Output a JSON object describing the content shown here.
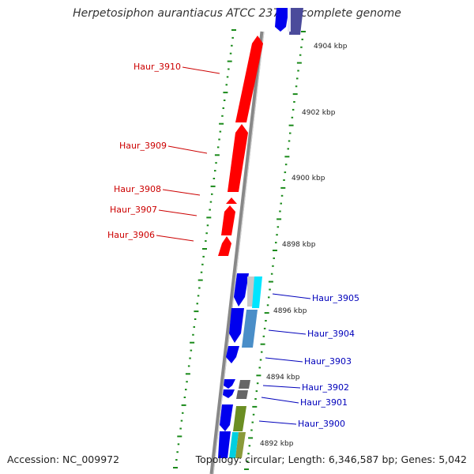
{
  "title": "Herpetosiphon aurantiacus ATCC 23779, complete genome",
  "accession": "Accession: NC_009972",
  "summary": "Topology: circular; Length: 6,346,587 bp; Genes: 5,042",
  "colors": {
    "backbone": "#888888",
    "tick": "#1a8a1a",
    "left_genes": "#ff0000",
    "left_labels": "#cc0000",
    "right_labels": "#0000bb",
    "strand_blue": "#0000ee"
  },
  "scale": {
    "ticks": [
      {
        "label": "4904 kbp",
        "kbp": 4904
      },
      {
        "label": "4902 kbp",
        "kbp": 4902
      },
      {
        "label": "4900 kbp",
        "kbp": 4900
      },
      {
        "label": "4898 kbp",
        "kbp": 4898
      },
      {
        "label": "4896 kbp",
        "kbp": 4896
      },
      {
        "label": "4894 kbp",
        "kbp": 4894
      },
      {
        "label": "4892 kbp",
        "kbp": 4892
      }
    ]
  },
  "left_genes": [
    {
      "label": "Haur_3910",
      "start_kbp": 4902.1,
      "end_kbp": 4904.7,
      "strand": "+"
    },
    {
      "label": "Haur_3909",
      "start_kbp": 4899.9,
      "end_kbp": 4902.0,
      "strand": "+"
    },
    {
      "label": "Haur_3908",
      "start_kbp": 4899.5,
      "end_kbp": 4899.7,
      "strand": "+"
    },
    {
      "label": "Haur_3907",
      "start_kbp": 4898.6,
      "end_kbp": 4899.4,
      "strand": "+"
    },
    {
      "label": "Haur_3906",
      "start_kbp": 4897.9,
      "end_kbp": 4898.5,
      "strand": "+"
    }
  ],
  "right_genes": [
    {
      "label": "Haur_3905",
      "start_kbp": 4896.2,
      "end_kbp": 4897.2,
      "color": "#00e5ff"
    },
    {
      "label": "Haur_3904",
      "start_kbp": 4894.8,
      "end_kbp": 4896.1,
      "color": "#4a8ec8"
    },
    {
      "label": "Haur_3903",
      "start_kbp": 4894.6,
      "end_kbp": 4894.75,
      "color": "#0000ee"
    },
    {
      "label": "Haur_3902",
      "start_kbp": 4893.45,
      "end_kbp": 4893.75,
      "color": "#666666"
    },
    {
      "label": "Haur_3901",
      "start_kbp": 4893.0,
      "end_kbp": 4893.3,
      "color": "#666666"
    },
    {
      "label": "Haur_3900",
      "start_kbp": 4891.9,
      "end_kbp": 4892.9,
      "color": "#6b8e23"
    }
  ]
}
